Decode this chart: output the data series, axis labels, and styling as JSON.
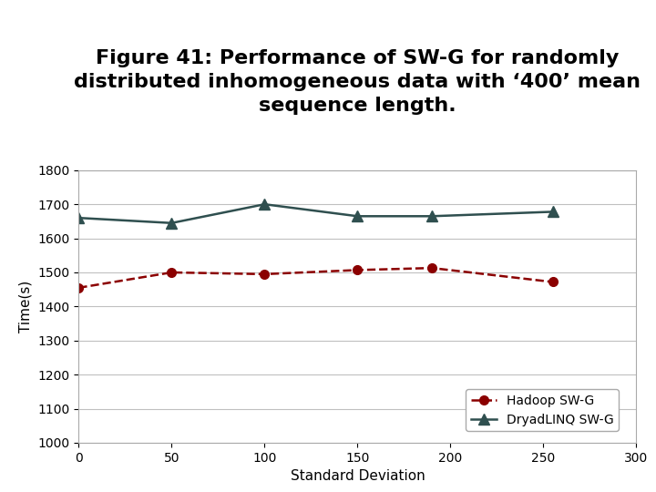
{
  "title_lines": [
    "Figure 41: Performance of SW-G for randomly",
    "distributed inhomogeneous data with ‘400’ mean",
    "sequence length."
  ],
  "xlabel": "Standard Deviation",
  "ylabel": "Time(s)",
  "xlim": [
    0,
    300
  ],
  "ylim": [
    1000,
    1800
  ],
  "yticks": [
    1000,
    1100,
    1200,
    1300,
    1400,
    1500,
    1600,
    1700,
    1800
  ],
  "xticks": [
    0,
    50,
    100,
    150,
    200,
    250,
    300
  ],
  "hadoop_x": [
    0,
    50,
    100,
    150,
    190,
    255
  ],
  "hadoop_y": [
    1455,
    1500,
    1495,
    1507,
    1513,
    1472
  ],
  "dryad_x": [
    0,
    50,
    100,
    150,
    190,
    255
  ],
  "dryad_y": [
    1660,
    1645,
    1700,
    1665,
    1665,
    1678
  ],
  "hadoop_color": "#8B0000",
  "dryad_color": "#2F4F4F",
  "background_color": "#ffffff",
  "plot_bg_color": "#ffffff",
  "grid_color": "#c0c0c0",
  "title_fontsize": 16,
  "axis_fontsize": 11,
  "tick_fontsize": 10,
  "legend_fontsize": 10
}
